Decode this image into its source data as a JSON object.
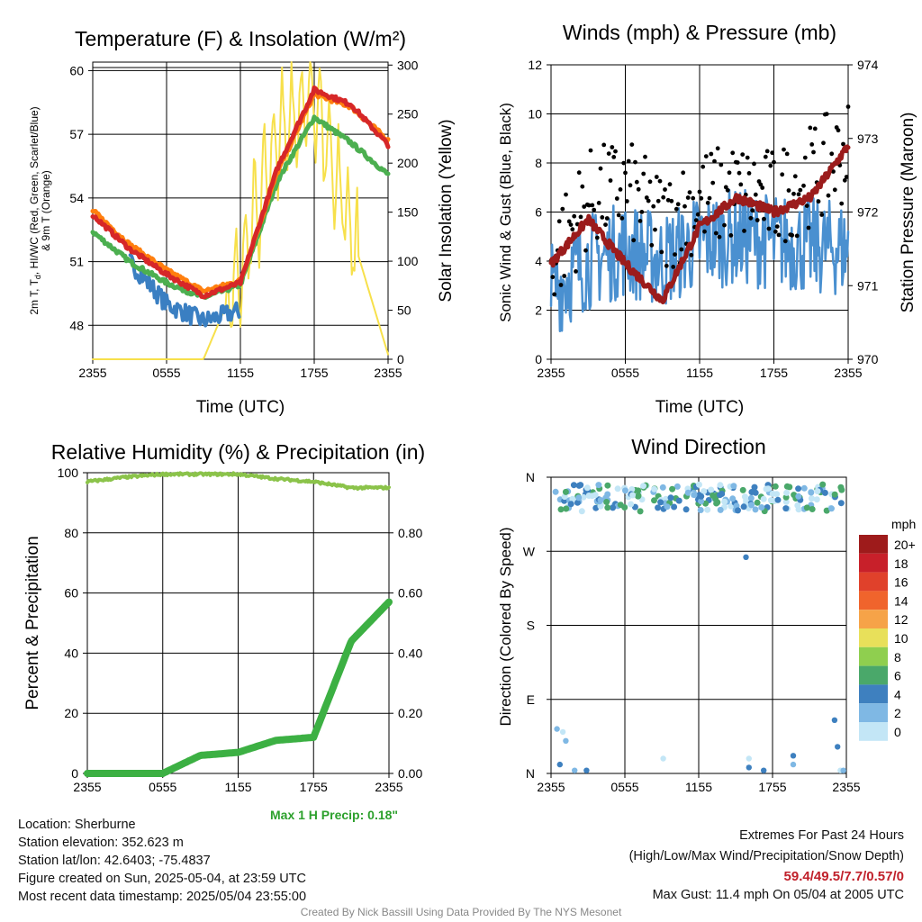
{
  "charts": {
    "temperature": {
      "title": "Temperature (F) & Insolation (W/m²)",
      "ylabel_left_lines": [
        "2m T, T",
        "d",
        ", HI/WC (Red, Green, Scarlet/Blue)",
        "& 9m T (Orange)"
      ],
      "ylabel_right": "Solar Insolation (Yellow)",
      "xlabel": "Time (UTC)",
      "xticks": [
        "2355",
        "0555",
        "1155",
        "1755",
        "2355"
      ],
      "yticks_left": [
        "48",
        "51",
        "54",
        "57",
        "60"
      ],
      "yticks_right": [
        "0",
        "50",
        "100",
        "150",
        "200",
        "250",
        "300"
      ]
    },
    "winds": {
      "title": "Winds (mph) & Pressure (mb)",
      "ylabel_left": "Sonic Wind & Gust (Blue, Black)",
      "ylabel_right": "Station Pressure (Maroon)",
      "xlabel": "Time (UTC)",
      "xticks": [
        "2355",
        "0555",
        "1155",
        "1755",
        "2355"
      ],
      "yticks_left": [
        "0",
        "2",
        "4",
        "6",
        "8",
        "10",
        "12"
      ],
      "yticks_right": [
        "970",
        "971",
        "972",
        "973",
        "974"
      ]
    },
    "humidity": {
      "title": "Relative Humidity (%) & Precipitation (in)",
      "ylabel_left": "Percent & Precipitation",
      "xticks": [
        "2355",
        "0555",
        "1155",
        "1755",
        "2355"
      ],
      "yticks_left": [
        "0",
        "20",
        "40",
        "60",
        "80",
        "100"
      ],
      "yticks_right": [
        "0.00",
        "0.20",
        "0.40",
        "0.60",
        "0.80"
      ],
      "max_precip": "Max 1 H Precip: 0.18\""
    },
    "direction": {
      "title": "Wind Direction",
      "ylabel_left": "Direction (Colored By Speed)",
      "xticks": [
        "2355",
        "0555",
        "1155",
        "1755",
        "2355"
      ],
      "yticks_left": [
        "N",
        "E",
        "S",
        "W",
        "N"
      ],
      "legend_title": "mph",
      "legend_labels": [
        "20+",
        "18",
        "16",
        "14",
        "12",
        "10",
        "8",
        "6",
        "4",
        "2",
        "0"
      ],
      "legend_colors": [
        "#9e1b1b",
        "#c8202a",
        "#e0412b",
        "#f0642c",
        "#f6a348",
        "#e8e05a",
        "#8fcf4f",
        "#4aa86a",
        "#3e80bf",
        "#7fb8e4",
        "#c3e6f6"
      ]
    }
  },
  "chart_data": [
    {
      "type": "line",
      "title": "Temperature (F) & Insolation (W/m²)",
      "xlabel": "Time (UTC)",
      "ylabel": "2m T, Td, HI/WC (Red, Green, Scarlet/Blue) & 9m T (Orange)",
      "ylabel_right": "Solar Insolation (Yellow)",
      "x": [
        "2355",
        "0255",
        "0555",
        "0855",
        "1155",
        "1455",
        "1755",
        "2055",
        "2355"
      ],
      "ylim": [
        46.4,
        60.4
      ],
      "ylim_right": [
        0,
        303
      ],
      "series": [
        {
          "name": "2m T",
          "color": "#d62728",
          "axis": "left",
          "values": [
            53.2,
            51.6,
            50.4,
            49.4,
            50.0,
            55.4,
            59.1,
            58.4,
            56.5
          ]
        },
        {
          "name": "9m T",
          "color": "#ff7f0e",
          "axis": "left",
          "values": [
            53.4,
            51.8,
            50.6,
            49.6,
            50.1,
            55.2,
            58.9,
            58.3,
            56.7
          ]
        },
        {
          "name": "Td",
          "color": "#4caf50",
          "axis": "left",
          "values": [
            52.4,
            51.0,
            50.0,
            49.3,
            49.9,
            54.8,
            57.8,
            56.6,
            55.1
          ]
        },
        {
          "name": "WC",
          "color": "#3a7fc2",
          "axis": "left",
          "values": [
            null,
            51.0,
            49.0,
            48.2,
            48.7,
            null,
            null,
            null,
            null
          ]
        },
        {
          "name": "Solar Insolation",
          "color": "#f7e04b",
          "axis": "right",
          "values": [
            0,
            0,
            0,
            0,
            90,
            230,
            270,
            130,
            5
          ]
        }
      ]
    },
    {
      "type": "line",
      "title": "Winds (mph) & Pressure (mb)",
      "xlabel": "Time (UTC)",
      "ylabel": "Sonic Wind & Gust (Blue, Black)",
      "ylabel_right": "Station Pressure (Maroon)",
      "x": [
        "2355",
        "0255",
        "0555",
        "0855",
        "1155",
        "1455",
        "1755",
        "2055",
        "2355"
      ],
      "ylim": [
        0,
        12
      ],
      "ylim_right": [
        970,
        974
      ],
      "series": [
        {
          "name": "Sonic Wind",
          "color": "#4a90d0",
          "axis": "left",
          "values": [
            2.8,
            4.0,
            4.5,
            4.0,
            4.8,
            5.0,
            4.8,
            4.6,
            4.5
          ]
        },
        {
          "name": "Gust",
          "color": "#000000",
          "axis": "left",
          "values": [
            4.0,
            6.5,
            7.0,
            5.5,
            6.5,
            6.8,
            6.5,
            7.5,
            8.5
          ]
        },
        {
          "name": "Station Pressure",
          "color": "#9b1c1c",
          "axis": "right",
          "values": [
            971.3,
            971.9,
            971.3,
            970.8,
            971.8,
            972.2,
            972.0,
            972.2,
            972.9
          ]
        }
      ]
    },
    {
      "type": "line",
      "title": "Relative Humidity (%) & Precipitation (in)",
      "ylabel": "Percent & Precipitation",
      "x": [
        "2355",
        "0255",
        "0555",
        "0855",
        "1155",
        "1455",
        "1755",
        "2055",
        "2355"
      ],
      "ylim": [
        0,
        100
      ],
      "ylim_right": [
        0,
        1.0
      ],
      "series": [
        {
          "name": "Relative Humidity",
          "color": "#8bc34a",
          "axis": "left",
          "values": [
            97,
            98.5,
            99.5,
            99.5,
            99.5,
            98,
            97,
            95,
            95
          ]
        },
        {
          "name": "Precipitation",
          "color": "#3cb043",
          "axis": "left",
          "values": [
            0,
            0,
            0,
            0.06,
            0.07,
            0.11,
            0.12,
            0.44,
            0.57
          ]
        }
      ]
    },
    {
      "type": "scatter",
      "title": "Wind Direction",
      "ylabel": "Direction (Colored By Speed)",
      "x": [
        "2355",
        "0555",
        "1155",
        "1755",
        "2355"
      ],
      "ylim_labels": [
        "N",
        "E",
        "S",
        "W",
        "N"
      ],
      "series": [
        {
          "name": "Wind Direction",
          "values": [
            {
              "t": "0000",
              "dir": "N",
              "speed": 4
            },
            {
              "t": "0600",
              "dir": "N",
              "speed": 4
            },
            {
              "t": "1200",
              "dir": "N",
              "speed": 4
            },
            {
              "t": "1800",
              "dir": "N",
              "speed": 6
            },
            {
              "t": "2300",
              "dir": "N",
              "speed": 4
            }
          ]
        }
      ]
    }
  ],
  "info": {
    "location": "Location: Sherburne",
    "elevation": "Station elevation: 352.623 m",
    "latlon": "Station lat/lon: 42.6403; -75.4837",
    "created": "Figure created on Sun, 2025-05-04, at 23:59 UTC",
    "recent": "Most recent data timestamp: 2025/05/04 23:55:00"
  },
  "extremes": {
    "header": "Extremes For Past 24 Hours",
    "subheader": "(High/Low/Max Wind/Precipitation/Snow Depth)",
    "values": "59.4/49.5/7.7/0.57/0",
    "max_gust": "Max Gust: 11.4 mph On 05/04 at 2005 UTC"
  },
  "credit": "Created By Nick Bassill Using Data Provided By The NYS Mesonet"
}
